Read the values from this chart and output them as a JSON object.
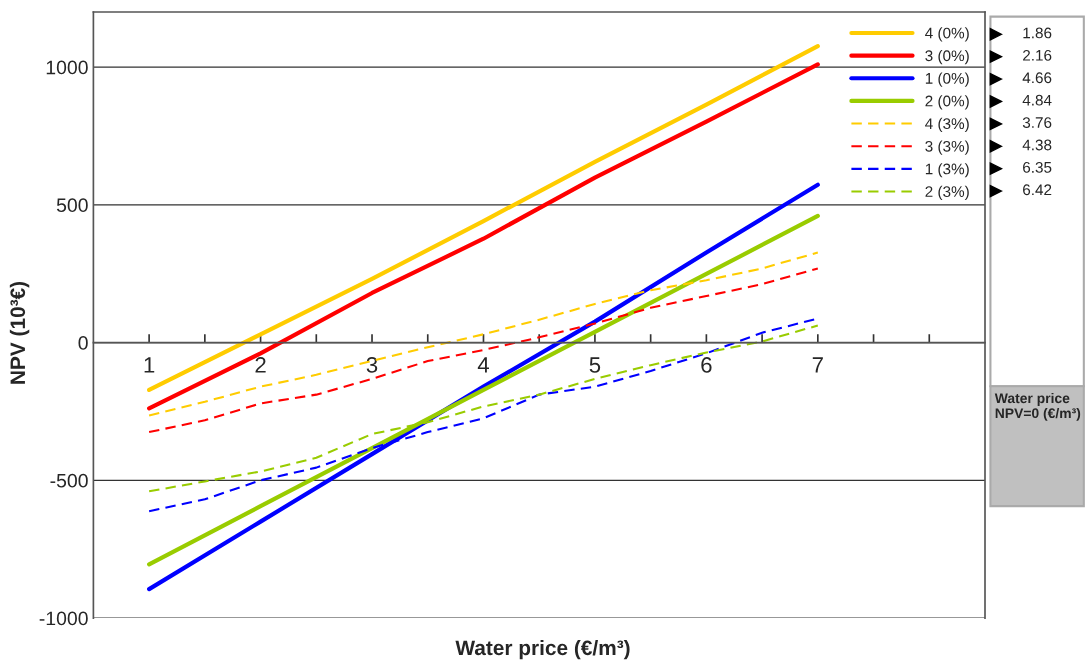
{
  "chart_data": {
    "type": "line",
    "xlabel": "Water price (€/m³)",
    "ylabel": "NPV (10³€)",
    "xlim": [
      0.5,
      8.5
    ],
    "ylim": [
      -1000,
      1200
    ],
    "xticks": [
      1,
      {
        "value": 1.5,
        "label": null
      },
      2,
      {
        "value": 2.5,
        "label": null
      },
      3,
      {
        "value": 3.5,
        "label": null
      },
      4,
      {
        "value": 4.5,
        "label": null
      },
      5,
      {
        "value": 5.5,
        "label": null
      },
      6,
      {
        "value": 6.5,
        "label": null
      },
      7,
      {
        "value": 7.5,
        "label": null
      },
      {
        "value": 8,
        "label": null
      }
    ],
    "yticks": [
      -1000,
      -500,
      0,
      500,
      1000
    ],
    "grid": "y",
    "legend": "top right",
    "marker": "none",
    "series": [
      {
        "name": "4 (0%)",
        "color": "#ffcc00",
        "line_style": "solid",
        "x": [
          1,
          2,
          3,
          4,
          5,
          6,
          7
        ],
        "values": [
          -172,
          30,
          231,
          441,
          656,
          864,
          1076
        ]
      },
      {
        "name": "3 (0%)",
        "color": "#ff0000",
        "line_style": "solid",
        "x": [
          1,
          2,
          3,
          4,
          5,
          6,
          7
        ],
        "values": [
          -239,
          -39,
          180,
          377,
          599,
          802,
          1010
        ]
      },
      {
        "name": "1 (0%)",
        "color": "#0000ff",
        "line_style": "solid",
        "x": [
          1,
          2,
          3,
          4,
          5,
          6,
          7
        ],
        "values": [
          -895,
          -650,
          -405,
          -160,
          76,
          327,
          573
        ]
      },
      {
        "name": "2 (0%)",
        "color": "#99cc00",
        "line_style": "solid",
        "x": [
          1,
          2,
          3,
          4,
          5,
          6,
          7
        ],
        "values": [
          -805,
          -594,
          -383,
          -172,
          39,
          249,
          460
        ]
      },
      {
        "name": "4 (3%)",
        "color": "#ffcc00",
        "line_style": "dashed",
        "x": [
          1,
          1.5,
          2,
          2.5,
          3,
          3.5,
          4,
          4.5,
          5,
          5.5,
          6,
          6.5,
          7
        ],
        "values": [
          -265,
          -215,
          -160,
          -117,
          -67,
          -17,
          30,
          83,
          140,
          190,
          226,
          269,
          327
        ]
      },
      {
        "name": "3 (3%)",
        "color": "#ff0000",
        "line_style": "dashed",
        "x": [
          1,
          1.5,
          2,
          2.5,
          3,
          3.5,
          4,
          4.5,
          5,
          5.5,
          6,
          6.5,
          7
        ],
        "values": [
          -325,
          -282,
          -221,
          -189,
          -132,
          -67,
          -27,
          19,
          69,
          126,
          169,
          212,
          269
        ]
      },
      {
        "name": "1 (3%)",
        "color": "#0000ff",
        "line_style": "dashed",
        "x": [
          1,
          1.5,
          2,
          2.5,
          3,
          3.5,
          4,
          4.5,
          5,
          5.5,
          6,
          6.5,
          7
        ],
        "values": [
          -612,
          -569,
          -500,
          -454,
          -383,
          -325,
          -275,
          -189,
          -160,
          -103,
          -39,
          36,
          87
        ]
      },
      {
        "name": "2 (3%)",
        "color": "#99cc00",
        "line_style": "dashed",
        "x": [
          1,
          1.5,
          2,
          2.5,
          3,
          3.5,
          4,
          4.5,
          5,
          5.5,
          6,
          6.5,
          7
        ],
        "values": [
          -540,
          -504,
          -468,
          -418,
          -332,
          -289,
          -232,
          -189,
          -132,
          -82,
          -36,
          4,
          62
        ]
      }
    ],
    "annotations": [
      "1.86",
      "2.16",
      "4.66",
      "4.84",
      "3.76",
      "4.38",
      "6.35",
      "6.42",
      "Water price NPV=0 (€/m³)"
    ]
  }
}
